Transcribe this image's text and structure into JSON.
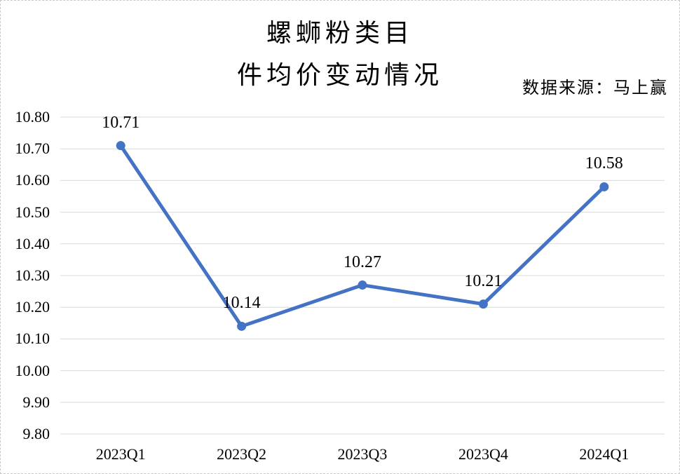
{
  "title": {
    "line1": "螺蛳粉类目",
    "line2": "件均价变动情况"
  },
  "source_note": "数据来源：马上赢",
  "chart_data": {
    "type": "line",
    "title": "螺蛳粉类目 件均价变动情况",
    "source": "数据来源：马上赢",
    "categories": [
      "2023Q1",
      "2023Q2",
      "2023Q3",
      "2023Q4",
      "2024Q1"
    ],
    "values": [
      10.71,
      10.14,
      10.27,
      10.21,
      10.58
    ],
    "data_labels": [
      "10.71",
      "10.14",
      "10.27",
      "10.21",
      "10.58"
    ],
    "xlabel": "",
    "ylabel": "",
    "ylim": [
      9.8,
      10.8
    ],
    "y_ticks": [
      "10.80",
      "10.70",
      "10.60",
      "10.50",
      "10.40",
      "10.30",
      "10.20",
      "10.10",
      "10.00",
      "9.90",
      "9.80"
    ],
    "grid": true,
    "legend": "none",
    "line_color": "#4472C4",
    "marker_color": "#4472C4",
    "gridline_color": "#D9D9D9",
    "text_color": "#000000"
  }
}
